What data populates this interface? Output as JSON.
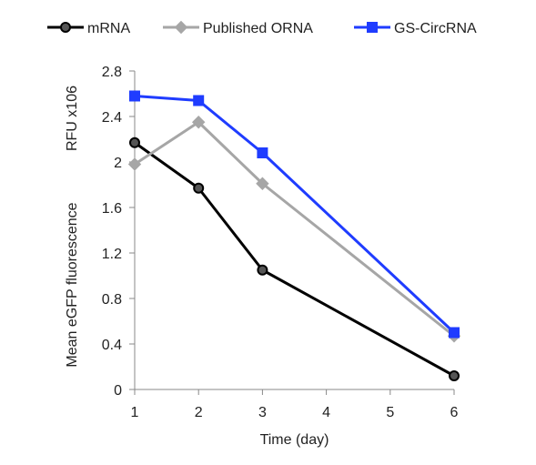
{
  "chart_data": {
    "type": "line",
    "x": [
      1,
      2,
      3,
      6
    ],
    "x_ticks": [
      "1",
      "2",
      "3",
      "4",
      "5",
      "6"
    ],
    "xlim": [
      1,
      6
    ],
    "ylim": [
      0,
      2.8
    ],
    "y_ticks": [
      "0",
      "0.4",
      "0.8",
      "1.2",
      "1.6",
      "2",
      "2.4",
      "2.8"
    ],
    "xlabel": "Time (day)",
    "ylabel_lines": [
      "Mean eGFP fluorescence",
      "RFU x106"
    ],
    "grid": false,
    "legend_position": "top",
    "series": [
      {
        "name": "mRNA",
        "values": [
          2.17,
          1.77,
          1.05,
          0.12
        ],
        "color": "#000000",
        "marker": "circle",
        "marker_fill": "#555555"
      },
      {
        "name": "Published ORNA",
        "values": [
          1.98,
          2.35,
          1.81,
          0.47
        ],
        "color": "#a6a6a6",
        "marker": "diamond",
        "marker_fill": "#a6a6a6"
      },
      {
        "name": "GS-CircRNA",
        "values": [
          2.58,
          2.54,
          2.08,
          0.5
        ],
        "color": "#1f3cff",
        "marker": "square",
        "marker_fill": "#1f3cff"
      }
    ]
  }
}
